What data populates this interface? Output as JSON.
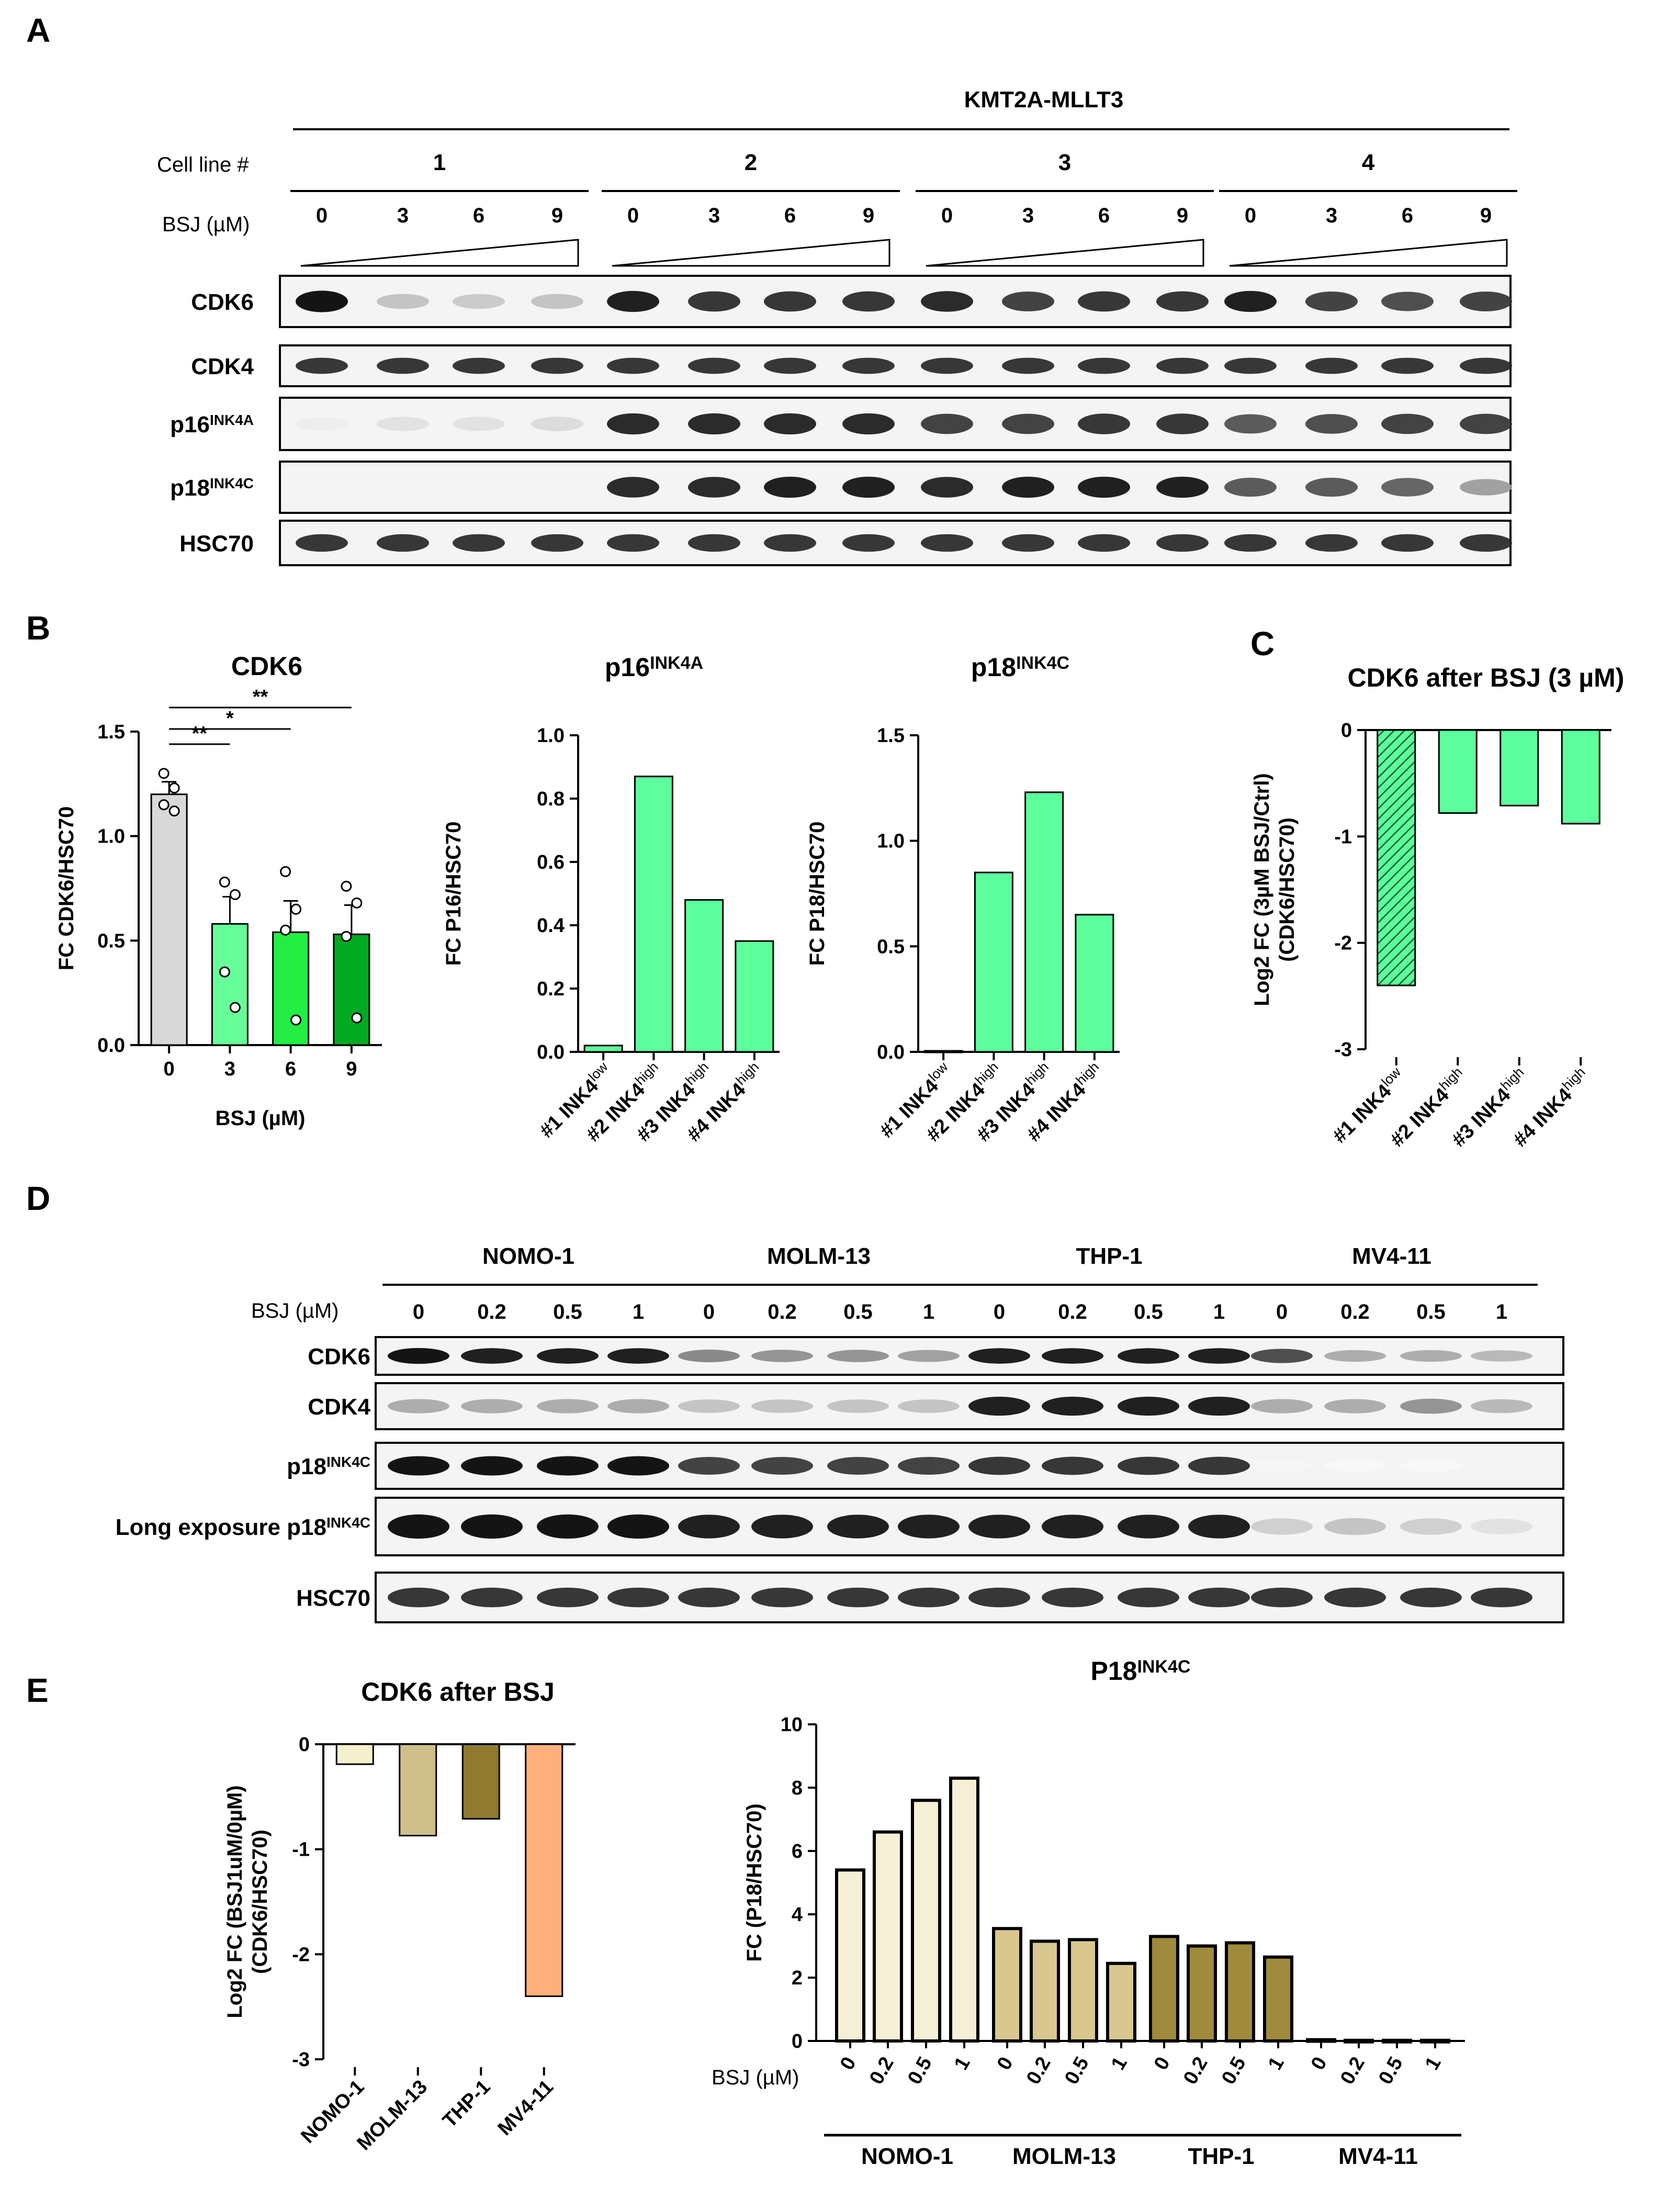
{
  "panels": {
    "a": "A",
    "b": "B",
    "c": "C",
    "d": "D",
    "e": "E"
  },
  "blot_a": {
    "header": "KMT2A-MLLT3",
    "cell_line_label": "Cell line #",
    "cell_lines": [
      "1",
      "2",
      "3",
      "4"
    ],
    "dose_label": "BSJ (µM)",
    "doses": [
      "0",
      "3",
      "6",
      "9"
    ],
    "rows": [
      {
        "name": "CDK6",
        "sup": "",
        "intensity": [
          1.0,
          0.25,
          0.22,
          0.25,
          0.95,
          0.85,
          0.85,
          0.85,
          0.9,
          0.8,
          0.85,
          0.85,
          0.95,
          0.8,
          0.75,
          0.8
        ]
      },
      {
        "name": "CDK4",
        "sup": "",
        "intensity": [
          0.85,
          0.85,
          0.85,
          0.85,
          0.85,
          0.85,
          0.85,
          0.85,
          0.85,
          0.85,
          0.85,
          0.85,
          0.85,
          0.85,
          0.85,
          0.85
        ]
      },
      {
        "name": "p16",
        "sup": "INK4A",
        "intensity": [
          0.08,
          0.12,
          0.12,
          0.15,
          0.9,
          0.9,
          0.9,
          0.9,
          0.8,
          0.8,
          0.85,
          0.85,
          0.7,
          0.75,
          0.8,
          0.8
        ]
      },
      {
        "name": "p18",
        "sup": "INK4C",
        "intensity": [
          0.0,
          0.0,
          0.0,
          0.0,
          0.9,
          0.9,
          0.95,
          0.95,
          0.9,
          0.95,
          0.95,
          0.95,
          0.7,
          0.7,
          0.65,
          0.4
        ]
      },
      {
        "name": "HSC70",
        "sup": "",
        "intensity": [
          0.85,
          0.85,
          0.85,
          0.85,
          0.85,
          0.85,
          0.85,
          0.85,
          0.85,
          0.85,
          0.85,
          0.85,
          0.85,
          0.85,
          0.85,
          0.85
        ]
      }
    ]
  },
  "blot_d": {
    "cell_lines": [
      "NOMO-1",
      "MOLM-13",
      "THP-1",
      "MV4-11"
    ],
    "dose_label": "BSJ (µM)",
    "doses": [
      "0",
      "0.2",
      "0.5",
      "1"
    ],
    "rows": [
      {
        "name": "CDK6",
        "sup": "",
        "intensity": [
          1.0,
          0.95,
          0.95,
          0.95,
          0.5,
          0.45,
          0.45,
          0.4,
          0.95,
          0.95,
          0.95,
          0.95,
          0.75,
          0.35,
          0.35,
          0.3
        ]
      },
      {
        "name": "CDK4",
        "sup": "",
        "intensity": [
          0.35,
          0.35,
          0.35,
          0.35,
          0.25,
          0.25,
          0.25,
          0.25,
          0.95,
          0.95,
          0.95,
          0.95,
          0.35,
          0.35,
          0.45,
          0.3
        ]
      },
      {
        "name": "p18",
        "sup": "INK4C",
        "intensity": [
          1.0,
          1.0,
          1.0,
          1.0,
          0.8,
          0.8,
          0.8,
          0.8,
          0.85,
          0.85,
          0.85,
          0.85,
          0.04,
          0.03,
          0.03,
          0.0
        ]
      },
      {
        "name": "Long exposure p18",
        "sup": "INK4C",
        "intensity": [
          1.0,
          1.0,
          1.0,
          1.0,
          0.95,
          0.95,
          0.95,
          0.95,
          0.95,
          0.95,
          0.95,
          0.95,
          0.2,
          0.25,
          0.2,
          0.12
        ]
      },
      {
        "name": "HSC70",
        "sup": "",
        "intensity": [
          0.85,
          0.85,
          0.85,
          0.85,
          0.85,
          0.85,
          0.85,
          0.85,
          0.85,
          0.85,
          0.85,
          0.85,
          0.85,
          0.85,
          0.85,
          0.85
        ]
      }
    ]
  },
  "chart_data": [
    {
      "id": "b_cdk6",
      "type": "bar",
      "title": "CDK6",
      "xlabel": "BSJ (µM)",
      "ylabel": "FC CDK6/HSC70",
      "ylim": [
        0,
        1.5
      ],
      "yticks": [
        "0.0",
        "0.5",
        "1.0",
        "1.5"
      ],
      "categories": [
        "0",
        "3",
        "6",
        "9"
      ],
      "values": [
        1.2,
        0.58,
        0.54,
        0.53
      ],
      "error": [
        0.06,
        0.13,
        0.15,
        0.14
      ],
      "points": [
        [
          1.3,
          1.23,
          1.15,
          1.12
        ],
        [
          0.78,
          0.72,
          0.35,
          0.18
        ],
        [
          0.83,
          0.65,
          0.55,
          0.12
        ],
        [
          0.76,
          0.68,
          0.52,
          0.13
        ]
      ],
      "colors": [
        "#d9d9d9",
        "#66ff99",
        "#22ee44",
        "#00aa22"
      ],
      "significance": [
        "**",
        "*",
        "**"
      ]
    },
    {
      "id": "b_p16",
      "type": "bar",
      "title": "p16",
      "title_sup": "INK4A",
      "ylabel": "FC P16/HSC70",
      "ylim": [
        0,
        1.0
      ],
      "yticks": [
        "0.0",
        "0.2",
        "0.4",
        "0.6",
        "0.8",
        "1.0"
      ],
      "categories": [
        "#1 INK4",
        "#2 INK4",
        "#3 INK4",
        "#4 INK4"
      ],
      "category_sup": [
        "low",
        "high",
        "high",
        "high"
      ],
      "values": [
        0.02,
        0.87,
        0.48,
        0.35
      ],
      "color": "#5cff9c"
    },
    {
      "id": "b_p18",
      "type": "bar",
      "title": "p18",
      "title_sup": "INK4C",
      "ylabel": "FC P18/HSC70",
      "ylim": [
        0,
        1.5
      ],
      "yticks": [
        "0.0",
        "0.5",
        "1.0",
        "1.5"
      ],
      "categories": [
        "#1 INK4",
        "#2 INK4",
        "#3 INK4",
        "#4 INK4"
      ],
      "category_sup": [
        "low",
        "high",
        "high",
        "high"
      ],
      "values": [
        0.005,
        0.85,
        1.23,
        0.65
      ],
      "color": "#5cff9c"
    },
    {
      "id": "c_cdk6",
      "type": "bar",
      "title": "CDK6 after BSJ (3 µM)",
      "ylabel": "Log2 FC (3µM BSJ/Ctrl)",
      "ylabel2": "(CDK6/HSC70)",
      "ylim": [
        -3,
        0
      ],
      "yticks": [
        "0",
        "-1",
        "-2",
        "-3"
      ],
      "categories": [
        "#1 INK4",
        "#2 INK4",
        "#3 INK4",
        "#4 INK4"
      ],
      "category_sup": [
        "low",
        "high",
        "high",
        "high"
      ],
      "values": [
        -2.4,
        -0.78,
        -0.71,
        -0.88
      ],
      "color": "#5cff9c",
      "hatched": [
        true,
        false,
        false,
        false
      ]
    },
    {
      "id": "e_cdk6",
      "type": "bar",
      "title": "CDK6 after BSJ",
      "ylabel": "Log2 FC (BSJ1uM/0µM)",
      "ylabel2": "(CDK6/HSC70)",
      "ylim": [
        -3,
        0
      ],
      "yticks": [
        "0",
        "-1",
        "-2",
        "-3"
      ],
      "categories": [
        "NOMO-1",
        "MOLM-13",
        "THP-1",
        "MV4-11"
      ],
      "values": [
        -0.19,
        -0.87,
        -0.71,
        -2.4
      ],
      "colors": [
        "#f6efce",
        "#cfc08a",
        "#8f7a2e",
        "#ffb07a"
      ]
    },
    {
      "id": "e_p18",
      "type": "bar",
      "title": "P18",
      "title_sup": "INK4C",
      "ylabel": "FC (P18/HSC70)",
      "ylim": [
        0,
        10
      ],
      "yticks": [
        "0",
        "2",
        "4",
        "6",
        "8",
        "10"
      ],
      "dose_label": "BSJ (µM)",
      "doses": [
        "0",
        "0.2",
        "0.5",
        "1"
      ],
      "groups": [
        "NOMO-1",
        "MOLM-13",
        "THP-1",
        "MV4-11"
      ],
      "series": [
        {
          "name": "NOMO-1",
          "values": [
            5.4,
            6.6,
            7.6,
            8.3
          ],
          "color": "#f5efd5"
        },
        {
          "name": "MOLM-13",
          "values": [
            3.55,
            3.15,
            3.2,
            2.45
          ],
          "color": "#d8c88f"
        },
        {
          "name": "THP-1",
          "values": [
            3.3,
            3.0,
            3.1,
            2.65
          ],
          "color": "#a08a3c"
        },
        {
          "name": "MV4-11",
          "values": [
            0.04,
            0.02,
            0.02,
            0.02
          ],
          "color": "#8a7a3c"
        }
      ]
    }
  ]
}
